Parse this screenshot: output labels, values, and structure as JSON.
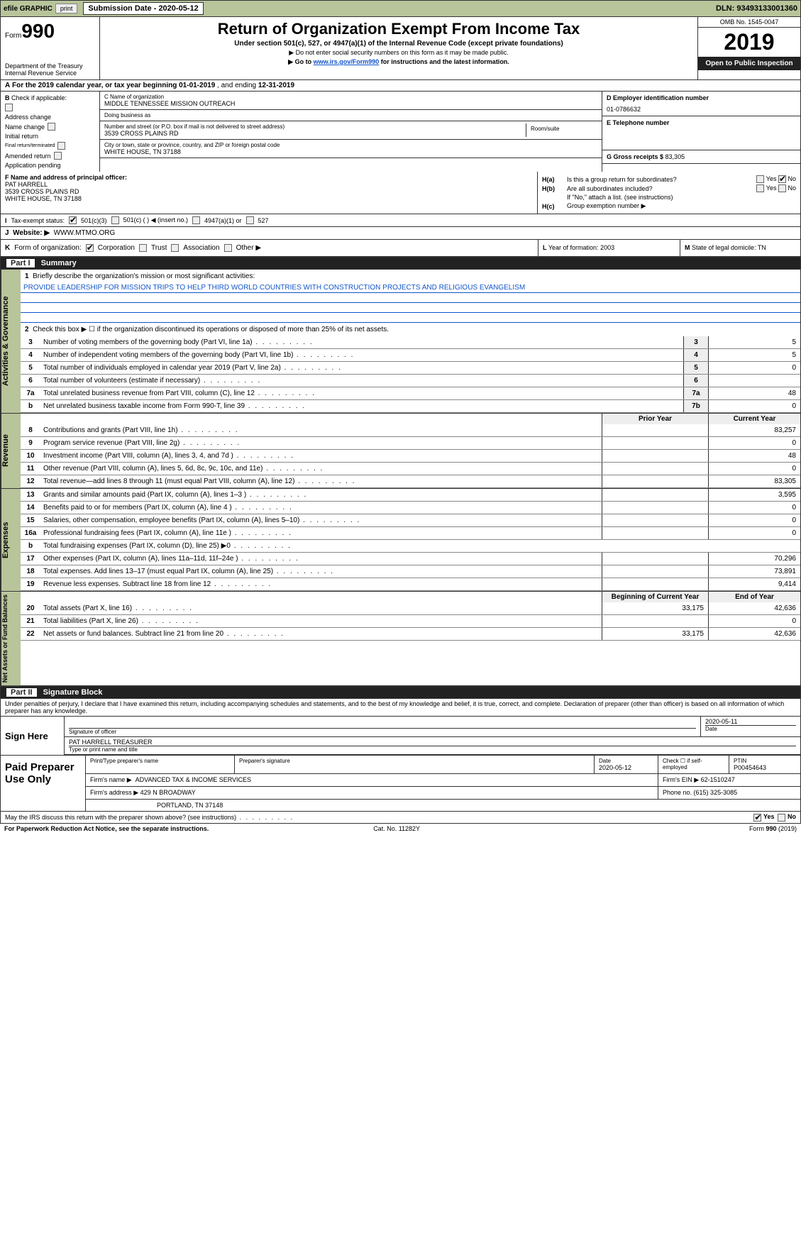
{
  "topbar": {
    "efile_label": "efile GRAPHIC",
    "print_label": "print",
    "submission_label": "Submission Date - 2020-05-12",
    "dln": "DLN: 93493133001360"
  },
  "header": {
    "form_prefix": "Form",
    "form_num": "990",
    "dept": "Department of the Treasury",
    "irs": "Internal Revenue Service",
    "title": "Return of Organization Exempt From Income Tax",
    "subtitle": "Under section 501(c), 527, or 4947(a)(1) of the Internal Revenue Code (except private foundations)",
    "note1": "▶ Do not enter social security numbers on this form as it may be made public.",
    "note2_a": "▶ Go to ",
    "note2_link": "www.irs.gov/Form990",
    "note2_b": " for instructions and the latest information.",
    "omb": "OMB No. 1545-0047",
    "year": "2019",
    "open_public": "Open to Public Inspection"
  },
  "row_a": {
    "label": "A",
    "text_a": "For the 2019 calendar year, or tax year beginning ",
    "begin": "01-01-2019",
    "mid": " , and ending ",
    "end": "12-31-2019"
  },
  "col_b": {
    "label": "B",
    "check_if": "Check if applicable:",
    "addr_change": "Address change",
    "name_change": "Name change",
    "initial": "Initial return",
    "final": "Final return/terminated",
    "amended": "Amended return",
    "pending": "Application pending"
  },
  "col_c": {
    "c_label": "C Name of organization",
    "org_name": "MIDDLE TENNESSEE MISSION OUTREACH",
    "dba_label": "Doing business as",
    "dba": "",
    "street_label": "Number and street (or P.O. box if mail is not delivered to street address)",
    "street": "3539 CROSS PLAINS RD",
    "room_label": "Room/suite",
    "city_label": "City or town, state or province, country, and ZIP or foreign postal code",
    "city": "WHITE HOUSE, TN  37188",
    "f_label": "F Name and address of principal officer:",
    "officer_name": "PAT HARRELL",
    "officer_addr1": "3539 CROSS PLAINS RD",
    "officer_addr2": "WHITE HOUSE, TN  37188"
  },
  "col_de": {
    "d_label": "D Employer identification number",
    "ein": "01-0786632",
    "e_label": "E Telephone number",
    "phone": "",
    "g_label": "G Gross receipts $ ",
    "gross": "83,305"
  },
  "row_h": {
    "ha_label": "H(a)",
    "ha_text": "Is this a group return for subordinates?",
    "hb_label": "H(b)",
    "hb_text": "Are all subordinates included?",
    "hb_note": "If \"No,\" attach a list. (see instructions)",
    "hc_label": "H(c)",
    "hc_text": "Group exemption number ▶",
    "yes": "Yes",
    "no": "No"
  },
  "row_i": {
    "label": "I",
    "tax_exempt": "Tax-exempt status:",
    "c3": "501(c)(3)",
    "c_blank": "501(c) (   ) ◀ (insert no.)",
    "a1": "4947(a)(1) or",
    "s527": "527"
  },
  "row_j": {
    "label": "J",
    "website_label": "Website: ▶",
    "website": "WWW.MTMO.ORG"
  },
  "row_k": {
    "label": "K",
    "form_org": "Form of organization:",
    "corp": "Corporation",
    "trust": "Trust",
    "assoc": "Association",
    "other": "Other ▶"
  },
  "row_l": {
    "label": "L",
    "text": "Year of formation: ",
    "val": "2003"
  },
  "row_m": {
    "label": "M",
    "text": "State of legal domicile: ",
    "val": "TN"
  },
  "part1": {
    "header_label": "Part I",
    "header_text": "Summary",
    "side_gov": "Activities & Governance",
    "side_rev": "Revenue",
    "side_exp": "Expenses",
    "side_net": "Net Assets or Fund Balances",
    "line1_label": "1",
    "line1_text": "Briefly describe the organization's mission or most significant activities:",
    "mission": "PROVIDE LEADERSHIP FOR MISSION TRIPS TO HELP THIRD WORLD COUNTRIES WITH CONSTRUCTION PROJECTS AND RELIGIOUS EVANGELISM",
    "line2_label": "2",
    "line2_text": "Check this box ▶ ☐ if the organization discontinued its operations or disposed of more than 25% of its net assets.",
    "rows_gov": [
      {
        "n": "3",
        "desc": "Number of voting members of the governing body (Part VI, line 1a)",
        "cell": "3",
        "val": "5"
      },
      {
        "n": "4",
        "desc": "Number of independent voting members of the governing body (Part VI, line 1b)",
        "cell": "4",
        "val": "5"
      },
      {
        "n": "5",
        "desc": "Total number of individuals employed in calendar year 2019 (Part V, line 2a)",
        "cell": "5",
        "val": "0"
      },
      {
        "n": "6",
        "desc": "Total number of volunteers (estimate if necessary)",
        "cell": "6",
        "val": ""
      },
      {
        "n": "7a",
        "desc": "Total unrelated business revenue from Part VIII, column (C), line 12",
        "cell": "7a",
        "val": "48"
      },
      {
        "n": "b",
        "desc": "Net unrelated business taxable income from Form 990-T, line 39",
        "cell": "7b",
        "val": "0"
      }
    ],
    "prior_year": "Prior Year",
    "current_year": "Current Year",
    "rows_rev": [
      {
        "n": "8",
        "desc": "Contributions and grants (Part VIII, line 1h)",
        "py": "",
        "cy": "83,257"
      },
      {
        "n": "9",
        "desc": "Program service revenue (Part VIII, line 2g)",
        "py": "",
        "cy": "0"
      },
      {
        "n": "10",
        "desc": "Investment income (Part VIII, column (A), lines 3, 4, and 7d )",
        "py": "",
        "cy": "48"
      },
      {
        "n": "11",
        "desc": "Other revenue (Part VIII, column (A), lines 5, 6d, 8c, 9c, 10c, and 11e)",
        "py": "",
        "cy": "0"
      },
      {
        "n": "12",
        "desc": "Total revenue—add lines 8 through 11 (must equal Part VIII, column (A), line 12)",
        "py": "",
        "cy": "83,305"
      }
    ],
    "rows_exp": [
      {
        "n": "13",
        "desc": "Grants and similar amounts paid (Part IX, column (A), lines 1–3 )",
        "py": "",
        "cy": "3,595"
      },
      {
        "n": "14",
        "desc": "Benefits paid to or for members (Part IX, column (A), line 4 )",
        "py": "",
        "cy": "0"
      },
      {
        "n": "15",
        "desc": "Salaries, other compensation, employee benefits (Part IX, column (A), lines 5–10)",
        "py": "",
        "cy": "0"
      },
      {
        "n": "16a",
        "desc": "Professional fundraising fees (Part IX, column (A), line 11e )",
        "py": "",
        "cy": "0"
      },
      {
        "n": "b",
        "desc": "Total fundraising expenses (Part IX, column (D), line 25) ▶0",
        "py": "—",
        "cy": "—"
      },
      {
        "n": "17",
        "desc": "Other expenses (Part IX, column (A), lines 11a–11d, 11f–24e )",
        "py": "",
        "cy": "70,296"
      },
      {
        "n": "18",
        "desc": "Total expenses. Add lines 13–17 (must equal Part IX, column (A), line 25)",
        "py": "",
        "cy": "73,891"
      },
      {
        "n": "19",
        "desc": "Revenue less expenses. Subtract line 18 from line 12",
        "py": "",
        "cy": "9,414"
      }
    ],
    "boy": "Beginning of Current Year",
    "eoy": "End of Year",
    "rows_net": [
      {
        "n": "20",
        "desc": "Total assets (Part X, line 16)",
        "py": "33,175",
        "cy": "42,636"
      },
      {
        "n": "21",
        "desc": "Total liabilities (Part X, line 26)",
        "py": "",
        "cy": "0"
      },
      {
        "n": "22",
        "desc": "Net assets or fund balances. Subtract line 21 from line 20",
        "py": "33,175",
        "cy": "42,636"
      }
    ]
  },
  "part2": {
    "header_label": "Part II",
    "header_text": "Signature Block",
    "perjury": "Under penalties of perjury, I declare that I have examined this return, including accompanying schedules and statements, and to the best of my knowledge and belief, it is true, correct, and complete. Declaration of preparer (other than officer) is based on all information of which preparer has any knowledge.",
    "sign_here": "Sign Here",
    "sig_date": "2020-05-11",
    "sig_officer_label": "Signature of officer",
    "date_label": "Date",
    "officer": "PAT HARRELL TREASURER",
    "type_label": "Type or print name and title",
    "paid_prep": "Paid Preparer Use Only",
    "prep_name_label": "Print/Type preparer's name",
    "prep_sig_label": "Preparer's signature",
    "prep_date_label": "Date",
    "prep_date": "2020-05-12",
    "check_self": "Check ☐ if self-employed",
    "ptin_label": "PTIN",
    "ptin": "P00454643",
    "firm_name_label": "Firm's name    ▶",
    "firm_name": "ADVANCED TAX & INCOME SERVICES",
    "firm_ein_label": "Firm's EIN ▶",
    "firm_ein": "62-1510247",
    "firm_addr_label": "Firm's address ▶",
    "firm_addr1": "429 N BROADWAY",
    "firm_addr2": "PORTLAND, TN  37148",
    "phone_label": "Phone no. ",
    "phone": "(615) 325-3085",
    "discuss": "May the IRS discuss this return with the preparer shown above? (see instructions)",
    "yes": "Yes",
    "no": "No"
  },
  "footer": {
    "pra": "For Paperwork Reduction Act Notice, see the separate instructions.",
    "cat": "Cat. No. 11282Y",
    "form": "Form 990 (2019)"
  }
}
